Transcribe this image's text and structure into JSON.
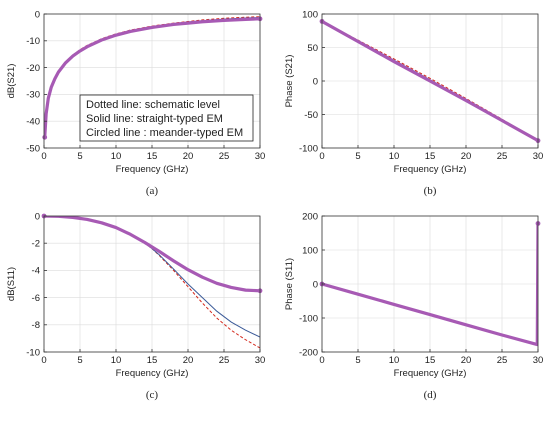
{
  "colors": {
    "circled": "#a75ab4",
    "solid": "#3b5a98",
    "dotted": "#d42a1e",
    "grid": "#dcdcdc",
    "frame": "#333333"
  },
  "chart_data": [
    {
      "id": "a",
      "type": "line",
      "caption": "(a)",
      "xlabel": "Frequency (GHz)",
      "ylabel": "dB(S21)",
      "xlim": [
        0,
        30
      ],
      "ylim": [
        -50,
        0
      ],
      "xticks": [
        0,
        5,
        10,
        15,
        20,
        25,
        30
      ],
      "yticks": [
        -50,
        -40,
        -30,
        -20,
        -10,
        0
      ],
      "grid": true,
      "legend_lines": [
        "Dotted line: schematic level",
        "Solid line: straight-typed EM",
        "Circled line : meander-typed EM"
      ],
      "series": [
        {
          "style": "dotted",
          "x": [
            0.1,
            0.3,
            0.6,
            1,
            1.5,
            2,
            3,
            4,
            5,
            6,
            8,
            10,
            12,
            15,
            18,
            20,
            22,
            25,
            28,
            30
          ],
          "y": [
            -46,
            -37,
            -31,
            -27,
            -23.8,
            -21.3,
            -17.8,
            -15.3,
            -13.3,
            -11.7,
            -9.2,
            -7.4,
            -6.0,
            -4.5,
            -3.4,
            -2.8,
            -2.2,
            -1.6,
            -1.2,
            -1.0
          ]
        },
        {
          "style": "solid",
          "x": [
            0.1,
            0.3,
            0.6,
            1,
            1.5,
            2,
            3,
            4,
            5,
            6,
            8,
            10,
            12,
            15,
            18,
            20,
            22,
            25,
            28,
            30
          ],
          "y": [
            -46,
            -37,
            -31.2,
            -27.2,
            -24,
            -21.5,
            -18,
            -15.5,
            -13.5,
            -11.9,
            -9.4,
            -7.6,
            -6.2,
            -4.7,
            -3.6,
            -3.0,
            -2.5,
            -1.9,
            -1.5,
            -1.3
          ]
        },
        {
          "style": "circled",
          "x": [
            0.1,
            0.3,
            0.6,
            1,
            1.5,
            2,
            3,
            4,
            5,
            6,
            8,
            10,
            12,
            15,
            18,
            20,
            22,
            25,
            28,
            30
          ],
          "y": [
            -46,
            -37.2,
            -31.4,
            -27.4,
            -24.2,
            -21.7,
            -18.2,
            -15.7,
            -13.8,
            -12.2,
            -9.7,
            -7.9,
            -6.5,
            -5.0,
            -3.9,
            -3.4,
            -2.9,
            -2.4,
            -2.0,
            -1.8
          ]
        }
      ]
    },
    {
      "id": "b",
      "type": "line",
      "caption": "(b)",
      "xlabel": "Frequency (GHz)",
      "ylabel": "Phase (S21)",
      "xlim": [
        0,
        30
      ],
      "ylim": [
        -100,
        100
      ],
      "xticks": [
        0,
        5,
        10,
        15,
        20,
        25,
        30
      ],
      "yticks": [
        -100,
        -50,
        0,
        50,
        100
      ],
      "grid": true,
      "series": [
        {
          "style": "dotted",
          "x": [
            0,
            5,
            10,
            15,
            20,
            25,
            30
          ],
          "y": [
            89,
            61,
            33,
            4,
            -26,
            -57,
            -89
          ]
        },
        {
          "style": "solid",
          "x": [
            0,
            5,
            10,
            15,
            20,
            25,
            30
          ],
          "y": [
            89,
            60,
            31,
            2,
            -28,
            -58,
            -89
          ]
        },
        {
          "style": "circled",
          "x": [
            0,
            5,
            10,
            15,
            20,
            25,
            30
          ],
          "y": [
            89,
            59,
            29,
            0,
            -29,
            -59,
            -89
          ]
        }
      ]
    },
    {
      "id": "c",
      "type": "line",
      "caption": "(c)",
      "xlabel": "Frequency (GHz)",
      "ylabel": "dB(S11)",
      "xlim": [
        0,
        30
      ],
      "ylim": [
        -10,
        0
      ],
      "xticks": [
        0,
        5,
        10,
        15,
        20,
        25,
        30
      ],
      "yticks": [
        -10,
        -8,
        -6,
        -4,
        -2,
        0
      ],
      "grid": true,
      "series": [
        {
          "style": "dotted",
          "x": [
            0,
            2,
            4,
            6,
            8,
            10,
            12,
            14,
            15,
            16,
            18,
            20,
            22,
            24,
            26,
            28,
            30
          ],
          "y": [
            0,
            -0.02,
            -0.1,
            -0.25,
            -0.5,
            -0.85,
            -1.35,
            -2.0,
            -2.4,
            -2.9,
            -4.0,
            -5.2,
            -6.4,
            -7.5,
            -8.4,
            -9.1,
            -9.7
          ]
        },
        {
          "style": "solid",
          "x": [
            0,
            2,
            4,
            6,
            8,
            10,
            12,
            14,
            15,
            16,
            18,
            20,
            22,
            24,
            26,
            28,
            30
          ],
          "y": [
            0,
            -0.02,
            -0.1,
            -0.25,
            -0.5,
            -0.85,
            -1.35,
            -2.0,
            -2.4,
            -2.85,
            -3.9,
            -5.0,
            -6.0,
            -7.0,
            -7.8,
            -8.4,
            -8.9
          ]
        },
        {
          "style": "circled",
          "x": [
            0,
            2,
            4,
            6,
            8,
            10,
            12,
            14,
            16,
            18,
            20,
            22,
            24,
            26,
            28,
            30
          ],
          "y": [
            0,
            -0.02,
            -0.1,
            -0.25,
            -0.5,
            -0.85,
            -1.35,
            -1.95,
            -2.6,
            -3.3,
            -3.95,
            -4.5,
            -4.95,
            -5.25,
            -5.45,
            -5.5
          ]
        }
      ]
    },
    {
      "id": "d",
      "type": "line",
      "caption": "(d)",
      "xlabel": "Frequency (GHz)",
      "ylabel": "Phase (S11)",
      "xlim": [
        0,
        30
      ],
      "ylim": [
        -200,
        200
      ],
      "xticks": [
        0,
        5,
        10,
        15,
        20,
        25,
        30
      ],
      "yticks": [
        -200,
        -100,
        0,
        100,
        200
      ],
      "grid": true,
      "series": [
        {
          "style": "dotted",
          "x": [
            0,
            5,
            10,
            15,
            20,
            25,
            29.9
          ],
          "y": [
            0,
            -30,
            -60,
            -90,
            -120,
            -150,
            -178
          ]
        },
        {
          "style": "solid",
          "x": [
            0,
            5,
            10,
            15,
            20,
            25,
            29.9
          ],
          "y": [
            0,
            -30,
            -60,
            -90,
            -120,
            -150,
            -178
          ]
        },
        {
          "style": "circled",
          "x": [
            0,
            5,
            10,
            15,
            20,
            25,
            29.9,
            29.95,
            30
          ],
          "y": [
            0,
            -30,
            -60,
            -90,
            -120,
            -150,
            -178,
            0,
            178
          ]
        }
      ]
    }
  ]
}
